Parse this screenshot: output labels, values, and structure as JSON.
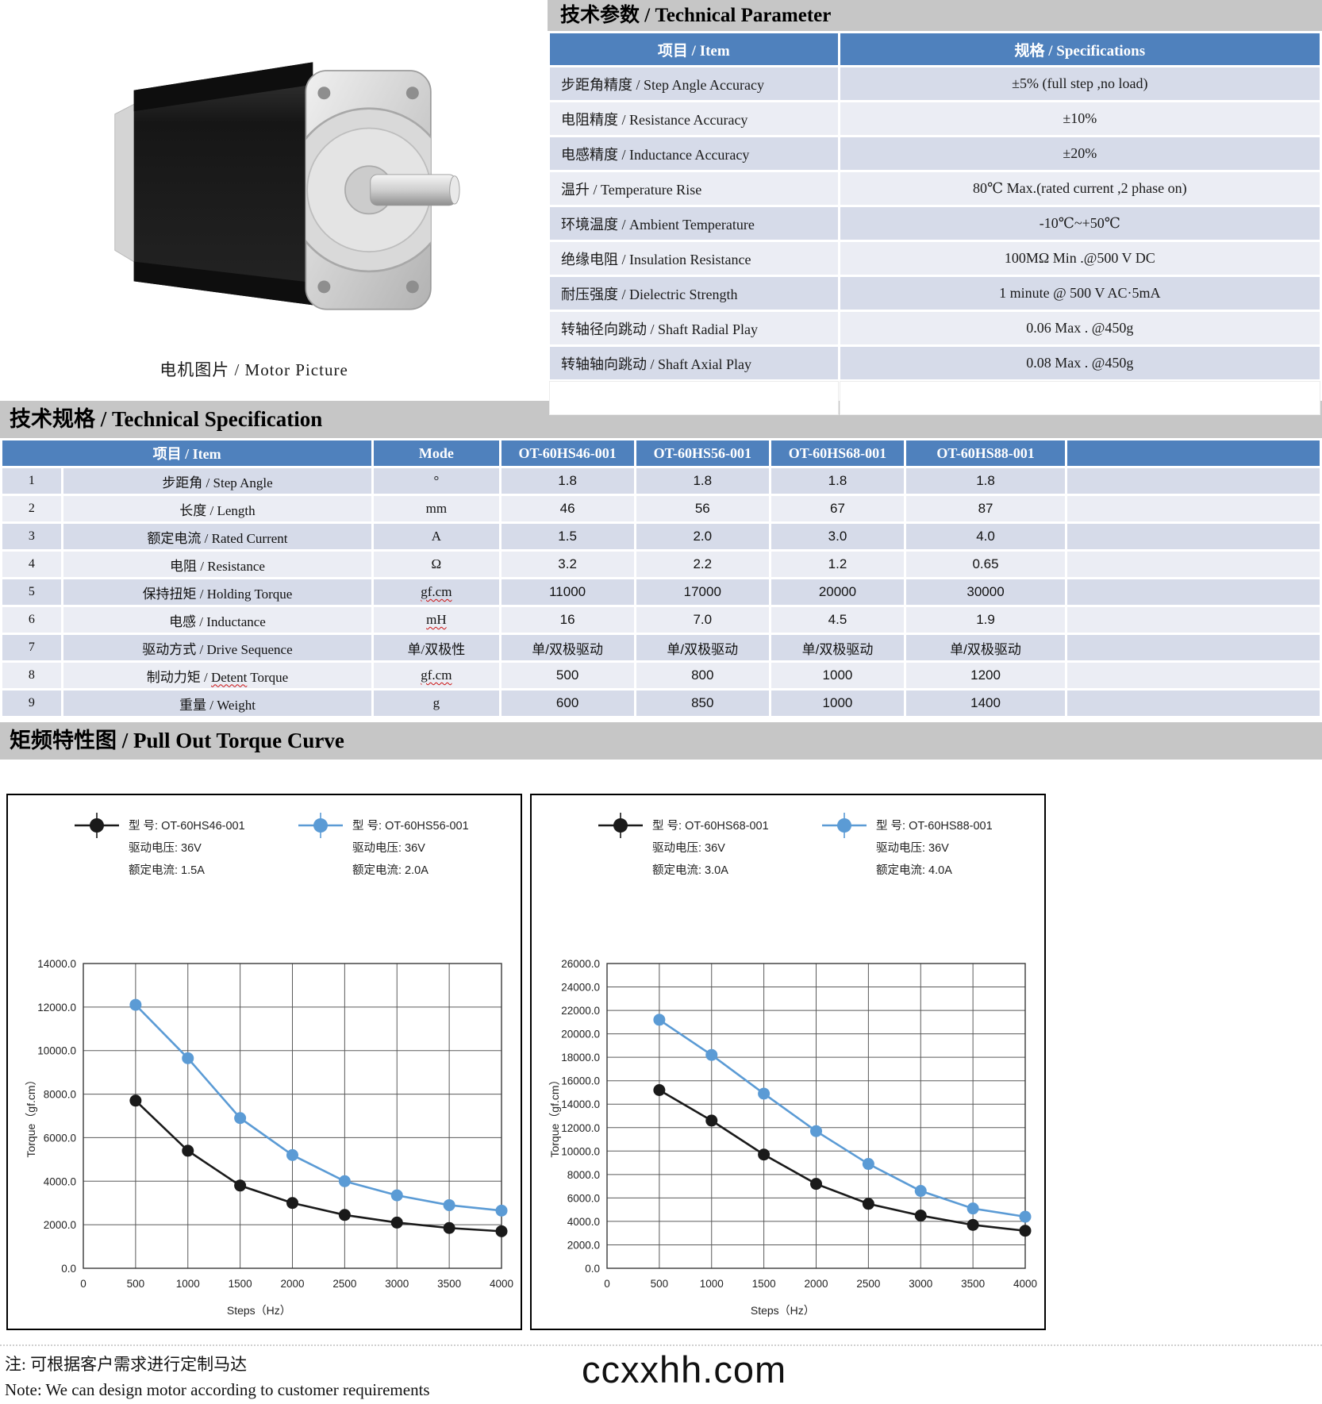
{
  "motor": {
    "caption": "电机图片 / Motor Picture"
  },
  "param_table": {
    "title": "技术参数 / Technical Parameter",
    "col_item": "项目 / Item",
    "col_spec": "规格 / Specifications",
    "rows": [
      {
        "item": "步距角精度 / Step Angle Accuracy",
        "spec": "±5% (full step ,no load)"
      },
      {
        "item": "电阻精度 / Resistance Accuracy",
        "spec": "±10%"
      },
      {
        "item": "电感精度 / Inductance Accuracy",
        "spec": "±20%"
      },
      {
        "item": "温升 / Temperature Rise",
        "spec": "80℃ Max.(rated current ,2 phase on)"
      },
      {
        "item": "环境温度 / Ambient Temperature",
        "spec": "-10℃~+50℃"
      },
      {
        "item": "绝缘电阻 / Insulation Resistance",
        "spec": "100MΩ Min .@500 V DC"
      },
      {
        "item": "耐压强度 / Dielectric Strength",
        "spec": "1 minute @ 500 V AC·5mA"
      },
      {
        "item": "转轴径向跳动 / Shaft Radial Play",
        "spec": "0.06 Max . @450g"
      },
      {
        "item": "转轴轴向跳动 / Shaft Axial Play",
        "spec": "0.08 Max . @450g"
      },
      {
        "item": "",
        "spec": ""
      }
    ]
  },
  "spec_table": {
    "title": "技术规格 / Technical Specification",
    "header": {
      "item": "项目 / Item",
      "mode": "Mode",
      "models": [
        "OT-60HS46-001",
        "OT-60HS56-001",
        "OT-60HS68-001",
        "OT-60HS88-001"
      ]
    },
    "rows": [
      {
        "num": "1",
        "item": "步距角 / Step Angle",
        "mode": "°",
        "values": [
          "1.8",
          "1.8",
          "1.8",
          "1.8"
        ]
      },
      {
        "num": "2",
        "item": "长度 / Length",
        "mode": "mm",
        "values": [
          "46",
          "56",
          "67",
          "87"
        ]
      },
      {
        "num": "3",
        "item": "额定电流 / Rated Current",
        "mode": "A",
        "values": [
          "1.5",
          "2.0",
          "3.0",
          "4.0"
        ]
      },
      {
        "num": "4",
        "item": "电阻 / Resistance",
        "mode": "Ω",
        "values": [
          "3.2",
          "2.2",
          "1.2",
          "0.65"
        ]
      },
      {
        "num": "5",
        "item": "保持扭矩 / Holding Torque",
        "mode": "gf.cm",
        "mode_sq": true,
        "values": [
          "11000",
          "17000",
          "20000",
          "30000"
        ]
      },
      {
        "num": "6",
        "item": "电感 / Inductance",
        "mode": "mH",
        "mode_sq": true,
        "values": [
          "16",
          "7.0",
          "4.5",
          "1.9"
        ]
      },
      {
        "num": "7",
        "item": "驱动方式 / Drive Sequence",
        "mode": "单/双极性",
        "values": [
          "单/双极驱动",
          "单/双极驱动",
          "单/双极驱动",
          "单/双极驱动"
        ]
      },
      {
        "num": "8",
        "item": "制动力矩 / Detent Torque",
        "mode": "gf.cm",
        "mode_sq": true,
        "sq_word": "Detent",
        "values": [
          "500",
          "800",
          "1000",
          "1200"
        ]
      },
      {
        "num": "9",
        "item": "重量 / Weight",
        "mode": "g",
        "values": [
          "600",
          "850",
          "1000",
          "1400"
        ]
      }
    ]
  },
  "torque_section": {
    "title": "矩频特性图 / Pull Out Torque Curve"
  },
  "chart_data": [
    {
      "type": "line",
      "x": [
        500,
        1000,
        1500,
        2000,
        2500,
        3000,
        3500,
        4000
      ],
      "series": [
        {
          "name": "OT-60HS46-001",
          "color": "#1a1a1a",
          "voltage": "36V",
          "current": "1.5A",
          "values": [
            7700,
            5400,
            3800,
            3000,
            2450,
            2100,
            1850,
            1700
          ]
        },
        {
          "name": "OT-60HS56-001",
          "color": "#5b9bd5",
          "voltage": "36V",
          "current": "2.0A",
          "values": [
            12100,
            9650,
            6900,
            5200,
            4000,
            3350,
            2900,
            2650
          ]
        }
      ],
      "xlabel": "Steps（Hz）",
      "ylabel": "Torque（gf.cm）",
      "xlim": [
        0,
        4000
      ],
      "xtick": 500,
      "ylim": [
        0,
        14000
      ],
      "ytick": 2000,
      "grid": true,
      "legend_position": "top",
      "legend_labels": {
        "model": "型  号:",
        "voltage": "驱动电压:",
        "current": "额定电流:"
      }
    },
    {
      "type": "line",
      "x": [
        500,
        1000,
        1500,
        2000,
        2500,
        3000,
        3500,
        4000
      ],
      "series": [
        {
          "name": "OT-60HS68-001",
          "color": "#1a1a1a",
          "voltage": "36V",
          "current": "3.0A",
          "values": [
            15200,
            12600,
            9700,
            7200,
            5500,
            4500,
            3700,
            3200
          ]
        },
        {
          "name": "OT-60HS88-001",
          "color": "#5b9bd5",
          "voltage": "36V",
          "current": "4.0A",
          "values": [
            21200,
            18200,
            14900,
            11700,
            8900,
            6600,
            5100,
            4400
          ]
        }
      ],
      "xlabel": "Steps（Hz）",
      "ylabel": "Torque（gf.cm）",
      "xlim": [
        0,
        4000
      ],
      "xtick": 500,
      "ylim": [
        0,
        26000
      ],
      "ytick": 2000,
      "grid": true,
      "legend_position": "top",
      "legend_labels": {
        "model": "型  号:",
        "voltage": "驱动电压:",
        "current": "额定电流:"
      }
    }
  ],
  "footer": {
    "note_cn": "注: 可根据客户需求进行定制马达",
    "note_en": "Note: We can design motor according to customer requirements",
    "site": "ccxxhh.com"
  },
  "colors": {
    "header_blue": "#4f81bd",
    "row_dark": "#d6dbe9",
    "row_light": "#ebedf4",
    "bar_gray": "#c6c6c6",
    "series_black": "#1a1a1a",
    "series_blue": "#5b9bd5"
  }
}
